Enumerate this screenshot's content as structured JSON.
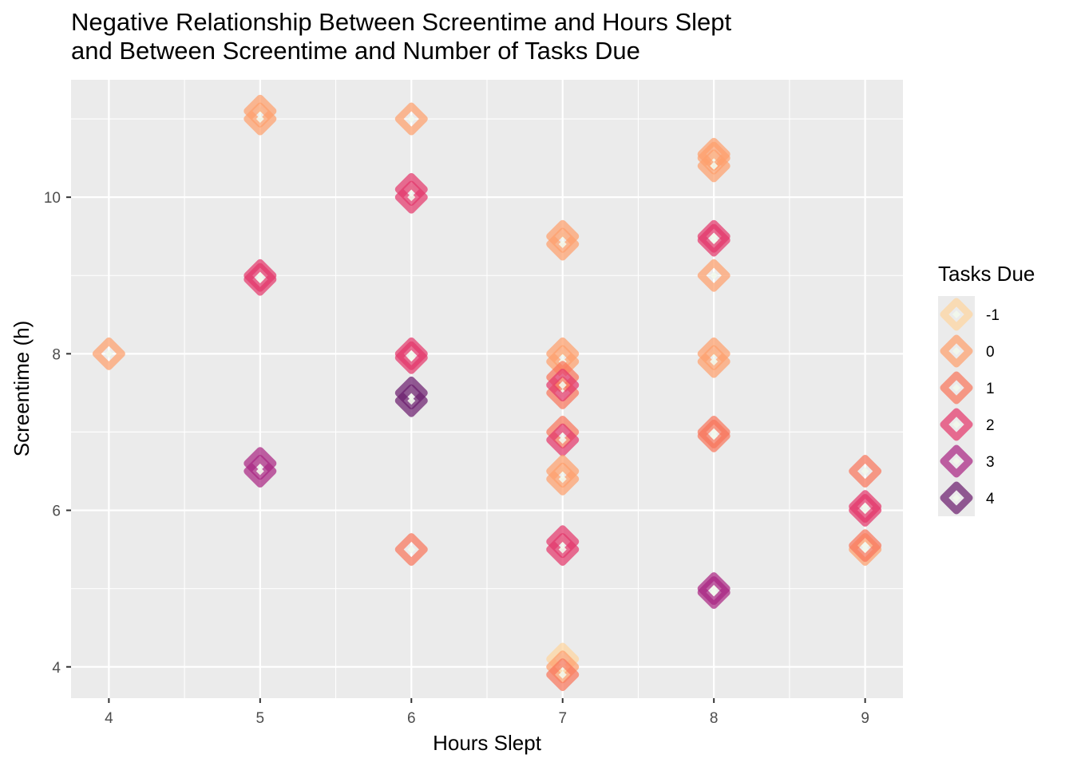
{
  "chart_data": {
    "type": "scatter",
    "title": "Negative Relationship Between Screentime and Hours Slept\nand Between Screentime and Number of Tasks Due",
    "xlabel": "Hours Slept",
    "ylabel": "Screentime (h)",
    "xlim": [
      3.75,
      9.25
    ],
    "ylim": [
      3.6,
      11.5
    ],
    "x_ticks": [
      "4",
      "5",
      "6",
      "7",
      "8",
      "9"
    ],
    "y_ticks": [
      "4",
      "6",
      "8",
      "10"
    ],
    "grid": true,
    "legend": {
      "title": "Tasks Due",
      "placement": "right",
      "entries": [
        {
          "label": "-1",
          "value": -1,
          "color": "#FDD49E"
        },
        {
          "label": "0",
          "value": 0,
          "color": "#FDA06C"
        },
        {
          "label": "1",
          "value": 1,
          "color": "#F8765C"
        },
        {
          "label": "2",
          "value": 2,
          "color": "#E3386B"
        },
        {
          "label": "3",
          "value": 3,
          "color": "#A92682"
        },
        {
          "label": "4",
          "value": 4,
          "color": "#6B1D6E"
        }
      ]
    },
    "points": [
      {
        "x": 4,
        "y": 8.0,
        "tasks": 0
      },
      {
        "x": 5,
        "y": 11.1,
        "tasks": 0
      },
      {
        "x": 5,
        "y": 11.0,
        "tasks": 0
      },
      {
        "x": 5,
        "y": 9.0,
        "tasks": 2
      },
      {
        "x": 5,
        "y": 8.95,
        "tasks": 2
      },
      {
        "x": 5,
        "y": 6.6,
        "tasks": 3
      },
      {
        "x": 5,
        "y": 6.5,
        "tasks": 3
      },
      {
        "x": 6,
        "y": 11.0,
        "tasks": 0
      },
      {
        "x": 6,
        "y": 10.1,
        "tasks": 2
      },
      {
        "x": 6,
        "y": 10.0,
        "tasks": 2
      },
      {
        "x": 6,
        "y": 8.0,
        "tasks": 2
      },
      {
        "x": 6,
        "y": 7.95,
        "tasks": 2
      },
      {
        "x": 6,
        "y": 7.5,
        "tasks": 4
      },
      {
        "x": 6,
        "y": 7.4,
        "tasks": 4
      },
      {
        "x": 6,
        "y": 5.5,
        "tasks": 1
      },
      {
        "x": 7,
        "y": 9.5,
        "tasks": 0
      },
      {
        "x": 7,
        "y": 9.4,
        "tasks": 0
      },
      {
        "x": 7,
        "y": 8.0,
        "tasks": 0
      },
      {
        "x": 7,
        "y": 7.9,
        "tasks": 0
      },
      {
        "x": 7,
        "y": 7.7,
        "tasks": 1
      },
      {
        "x": 7,
        "y": 7.5,
        "tasks": 1
      },
      {
        "x": 7,
        "y": 7.6,
        "tasks": 2
      },
      {
        "x": 7,
        "y": 7.0,
        "tasks": 1
      },
      {
        "x": 7,
        "y": 6.9,
        "tasks": 2
      },
      {
        "x": 7,
        "y": 6.5,
        "tasks": 0
      },
      {
        "x": 7,
        "y": 6.4,
        "tasks": 0
      },
      {
        "x": 7,
        "y": 5.6,
        "tasks": 2
      },
      {
        "x": 7,
        "y": 5.5,
        "tasks": 2
      },
      {
        "x": 7,
        "y": 4.1,
        "tasks": -1
      },
      {
        "x": 7,
        "y": 4.0,
        "tasks": 0
      },
      {
        "x": 7,
        "y": 3.9,
        "tasks": 1
      },
      {
        "x": 8,
        "y": 10.55,
        "tasks": 0
      },
      {
        "x": 8,
        "y": 10.5,
        "tasks": 0
      },
      {
        "x": 8,
        "y": 10.4,
        "tasks": 0
      },
      {
        "x": 8,
        "y": 9.5,
        "tasks": 2
      },
      {
        "x": 8,
        "y": 9.45,
        "tasks": 2
      },
      {
        "x": 8,
        "y": 9.0,
        "tasks": 0
      },
      {
        "x": 8,
        "y": 8.0,
        "tasks": 0
      },
      {
        "x": 8,
        "y": 7.9,
        "tasks": 0
      },
      {
        "x": 8,
        "y": 7.0,
        "tasks": 1
      },
      {
        "x": 8,
        "y": 6.95,
        "tasks": 1
      },
      {
        "x": 8,
        "y": 5.0,
        "tasks": 3
      },
      {
        "x": 8,
        "y": 4.95,
        "tasks": 3
      },
      {
        "x": 9,
        "y": 6.5,
        "tasks": 1
      },
      {
        "x": 9,
        "y": 6.0,
        "tasks": 2
      },
      {
        "x": 9,
        "y": 6.05,
        "tasks": 2
      },
      {
        "x": 9,
        "y": 5.5,
        "tasks": 0
      },
      {
        "x": 9,
        "y": 5.55,
        "tasks": 1
      }
    ]
  }
}
